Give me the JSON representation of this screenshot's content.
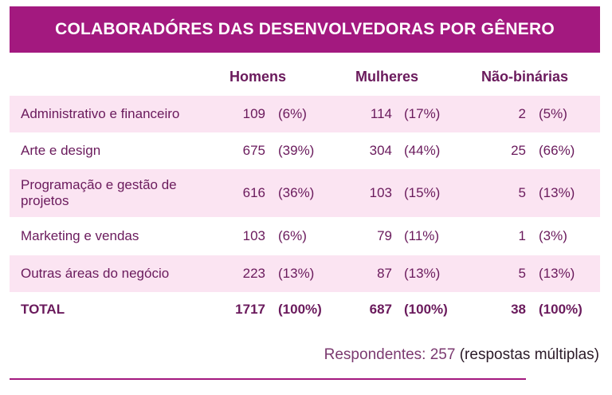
{
  "header": {
    "title": "COLABORADÓRES DAS DESENVOLVEDORAS POR GÊNERO"
  },
  "table": {
    "columns": [
      "Homens",
      "Mulheres",
      "Não-binárias"
    ],
    "rows": [
      {
        "label": "Administrativo e financeiro",
        "cells": [
          [
            109,
            "(6%)"
          ],
          [
            114,
            "(17%)"
          ],
          [
            2,
            "(5%)"
          ]
        ]
      },
      {
        "label": "Arte e design",
        "cells": [
          [
            675,
            "(39%)"
          ],
          [
            304,
            "(44%)"
          ],
          [
            25,
            "(66%)"
          ]
        ]
      },
      {
        "label": "Programação e gestão de projetos",
        "cells": [
          [
            616,
            "(36%)"
          ],
          [
            103,
            "(15%)"
          ],
          [
            5,
            "(13%)"
          ]
        ]
      },
      {
        "label": "Marketing e vendas",
        "cells": [
          [
            103,
            "(6%)"
          ],
          [
            79,
            "(11%)"
          ],
          [
            1,
            "(3%)"
          ]
        ]
      },
      {
        "label": "Outras áreas do negócio",
        "cells": [
          [
            223,
            "(13%)"
          ],
          [
            87,
            "(13%)"
          ],
          [
            5,
            "(13%)"
          ]
        ]
      },
      {
        "label": "TOTAL",
        "cells": [
          [
            1717,
            "(100%)"
          ],
          [
            687,
            "(100%)"
          ],
          [
            38,
            "(100%)"
          ]
        ]
      }
    ]
  },
  "footer": {
    "lead": "Respondentes: 257",
    "note": "(respostas múltiplas)"
  }
}
